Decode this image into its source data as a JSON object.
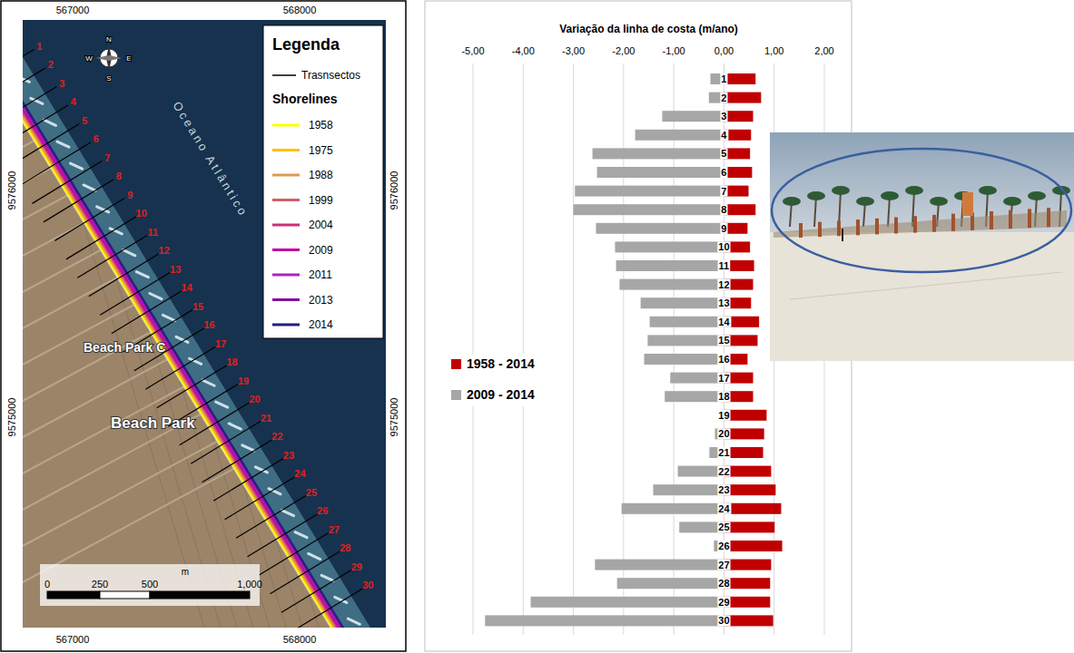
{
  "chart_data": {
    "type": "bar",
    "orientation": "horizontal",
    "title": "Variação da linha de costa (m/ano)",
    "categories": [
      "1",
      "2",
      "3",
      "4",
      "5",
      "6",
      "7",
      "8",
      "9",
      "10",
      "11",
      "12",
      "13",
      "14",
      "15",
      "16",
      "17",
      "18",
      "19",
      "20",
      "21",
      "22",
      "23",
      "24",
      "25",
      "26",
      "27",
      "28",
      "29",
      "30"
    ],
    "series": [
      {
        "name": "1958 - 2014",
        "color": "#c00000",
        "values": [
          0.63,
          0.74,
          0.58,
          0.54,
          0.52,
          0.56,
          0.49,
          0.63,
          0.47,
          0.52,
          0.6,
          0.58,
          0.54,
          0.7,
          0.67,
          0.47,
          0.58,
          0.58,
          0.85,
          0.8,
          0.78,
          0.94,
          1.03,
          1.14,
          1.01,
          1.16,
          0.94,
          0.92,
          0.92,
          0.98
        ]
      },
      {
        "name": "2009 - 2014",
        "color": "#a6a6a6",
        "values": [
          -0.27,
          -0.3,
          -1.23,
          -1.77,
          -2.62,
          -2.53,
          -2.97,
          -3.0,
          -2.55,
          -2.17,
          -2.15,
          -2.08,
          -1.66,
          -1.48,
          -1.52,
          -1.59,
          -1.07,
          -1.18,
          -0.05,
          -0.18,
          -0.29,
          -0.92,
          -1.41,
          -2.04,
          -0.89,
          -0.2,
          -2.57,
          -2.13,
          -3.85,
          -4.76
        ]
      }
    ],
    "xlim": [
      -5,
      2
    ],
    "xticks": [
      {
        "value": -5,
        "label": "-5,00"
      },
      {
        "value": -4,
        "label": "-4,00"
      },
      {
        "value": -3,
        "label": "-3,00"
      },
      {
        "value": -2,
        "label": "-2,00"
      },
      {
        "value": -1,
        "label": "-1,00"
      },
      {
        "value": 0,
        "label": "0,00"
      },
      {
        "value": 1,
        "label": "1,00"
      },
      {
        "value": 2,
        "label": "2,00"
      }
    ],
    "grid": true,
    "legend": "left"
  },
  "map": {
    "legend": {
      "title": "Legenda",
      "transects": "Trasnsectos",
      "shorelines_title": "Shorelines",
      "shorelines": [
        {
          "year": "1958",
          "color": "#ffff00"
        },
        {
          "year": "1975",
          "color": "#ffc000"
        },
        {
          "year": "1988",
          "color": "#e09a50"
        },
        {
          "year": "1999",
          "color": "#d0606a"
        },
        {
          "year": "2004",
          "color": "#c8307a"
        },
        {
          "year": "2009",
          "color": "#c000a0"
        },
        {
          "year": "2011",
          "color": "#b020c0"
        },
        {
          "year": "2013",
          "color": "#8010a0"
        },
        {
          "year": "2014",
          "color": "#20207a"
        }
      ]
    },
    "ocean_label": "Oceano Atlântico",
    "places": [
      "Beach Park C",
      "Beach Park"
    ],
    "x_coords": [
      "567000",
      "568000"
    ],
    "y_coords": [
      "9576000",
      "9575000"
    ],
    "scale": {
      "labels": [
        "0",
        "250",
        "500",
        "1,000"
      ],
      "unit": "m"
    },
    "compass": [
      "N",
      "S",
      "W",
      "E"
    ],
    "transects": [
      "1",
      "2",
      "3",
      "4",
      "5",
      "6",
      "7",
      "8",
      "9",
      "10",
      "11",
      "12",
      "13",
      "14",
      "15",
      "16",
      "17",
      "18",
      "19",
      "20",
      "21",
      "22",
      "23",
      "24",
      "25",
      "26",
      "27",
      "28",
      "29",
      "30"
    ]
  }
}
